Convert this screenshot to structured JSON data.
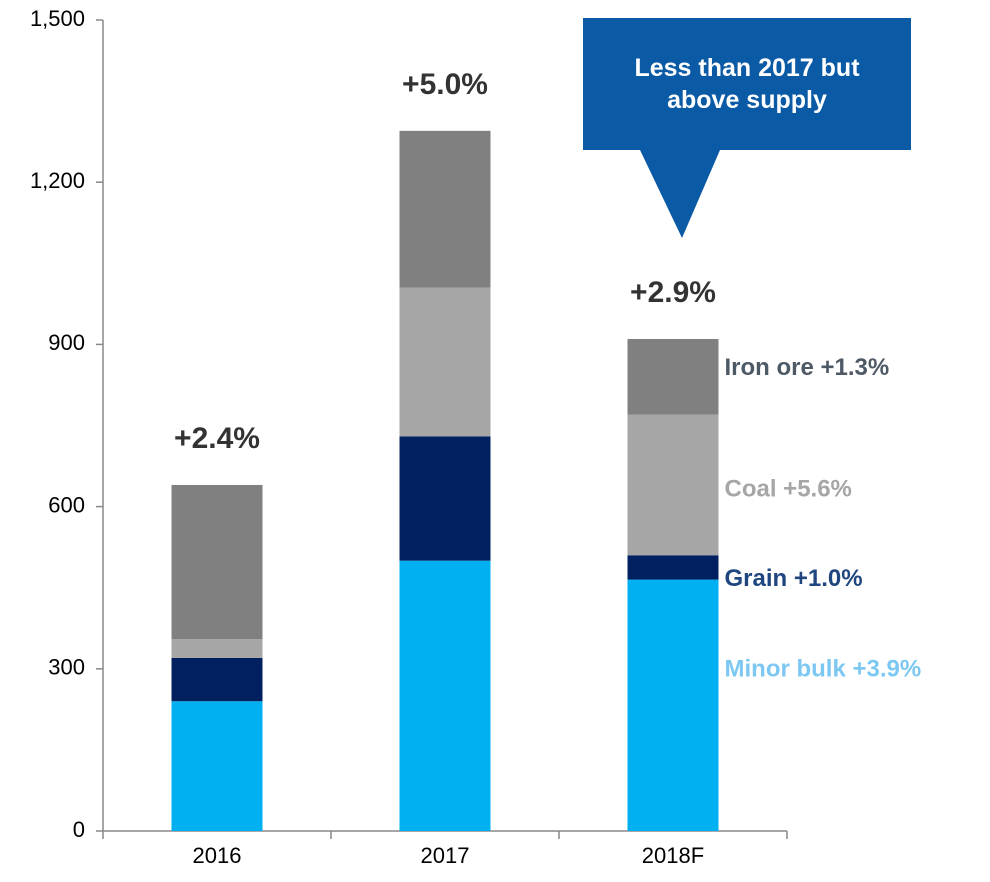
{
  "chart_data": {
    "type": "stacked_bar",
    "categories": [
      "2016",
      "2017",
      "2018F"
    ],
    "series": [
      {
        "name": "Minor bulk +3.9%",
        "color": "#00b0f0",
        "label_color": "#7cc8f2",
        "values": [
          240,
          500,
          465
        ]
      },
      {
        "name": "Grain +1.0%",
        "color": "#002060",
        "label_color": "#1f467f",
        "values": [
          80,
          230,
          45
        ]
      },
      {
        "name": "Coal +5.6%",
        "color": "#a6a6a6",
        "label_color": "#a6a6a6",
        "values": [
          35,
          275,
          260
        ]
      },
      {
        "name": "Iron ore +1.3%",
        "color": "#808080",
        "label_color": "#4e5966",
        "values": [
          285,
          290,
          140
        ]
      }
    ],
    "annotations": [
      "+2.4%",
      "+5.0%",
      "+2.9%"
    ],
    "callout": "Less than 2017 but above supply",
    "callout_color": "#0b5aa6",
    "ylim": [
      0,
      1500
    ],
    "yticks": [
      0,
      300,
      600,
      900,
      {
        "value": 1200,
        "label": "1,200"
      },
      {
        "value": 1500,
        "label": "1,500"
      }
    ],
    "grid": false
  }
}
